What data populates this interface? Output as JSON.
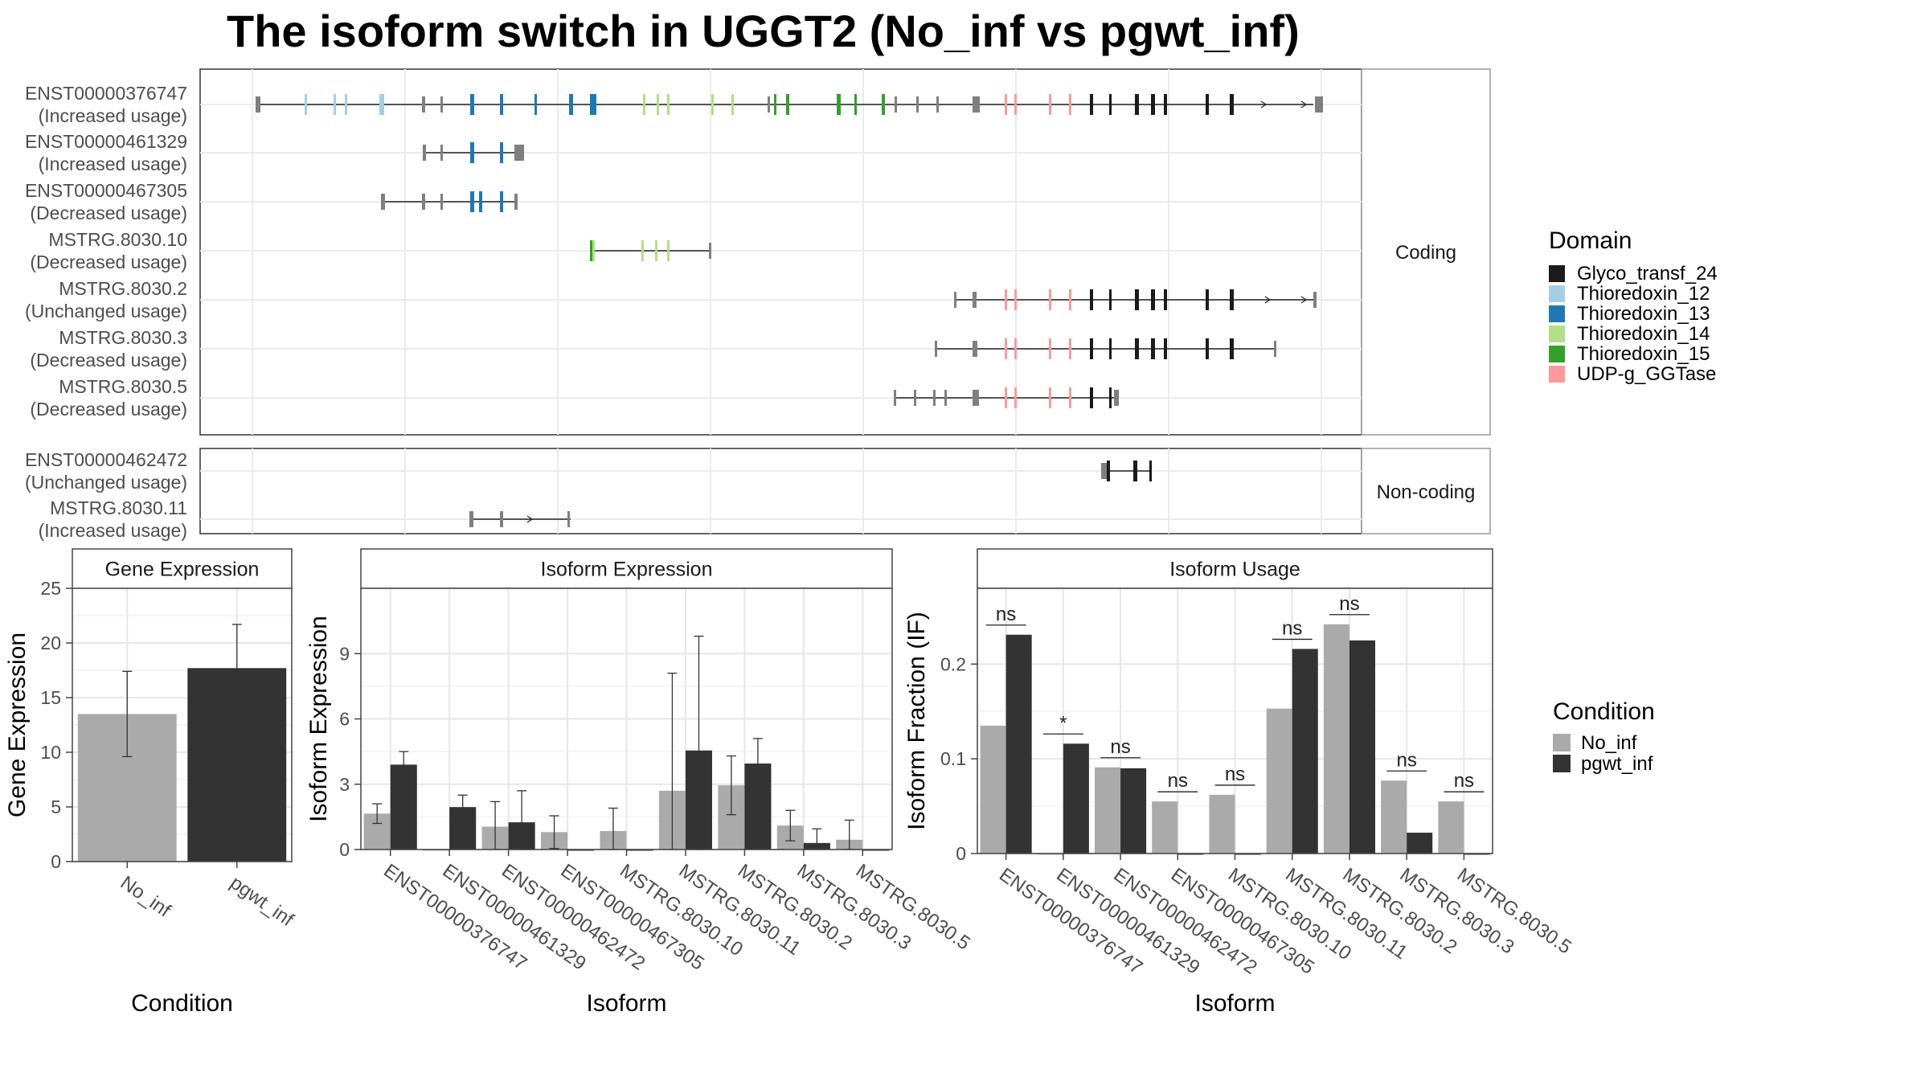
{
  "title": "The isoform switch in UGGT2 (No_inf vs pgwt_inf)",
  "colors": {
    "Glyco_transf_24": "#1a1a1a",
    "Thioredoxin_12": "#a6cee3",
    "Thioredoxin_13": "#1f78b4",
    "Thioredoxin_14": "#b2df8a",
    "Thioredoxin_15": "#33a02c",
    "UDP-g_GGTase": "#fb9a99",
    "exon": "#7f7f7f",
    "No_inf": "#aaaaaa",
    "pgwt_inf": "#333333"
  },
  "structure": {
    "panels": [
      {
        "label": "Coding",
        "rows": [
          {
            "id": "ENST00000376747",
            "usage": "(Increased usage)"
          },
          {
            "id": "ENST00000461329",
            "usage": "(Increased usage)"
          },
          {
            "id": "ENST00000467305",
            "usage": "(Decreased usage)"
          },
          {
            "id": "MSTRG.8030.10",
            "usage": "(Decreased usage)"
          },
          {
            "id": "MSTRG.8030.2",
            "usage": "(Unchanged usage)"
          },
          {
            "id": "MSTRG.8030.3",
            "usage": "(Decreased usage)"
          },
          {
            "id": "MSTRG.8030.5",
            "usage": "(Decreased usage)"
          }
        ]
      },
      {
        "label": "Non-coding",
        "rows": [
          {
            "id": "ENST00000462472",
            "usage": "(Unchanged usage)"
          },
          {
            "id": "MSTRG.8030.11",
            "usage": "(Increased usage)"
          }
        ]
      }
    ]
  },
  "legends": {
    "domain": {
      "title": "Domain",
      "items": [
        {
          "label": "Glyco_transf_24",
          "key": "Glyco_transf_24"
        },
        {
          "label": "Thioredoxin_12",
          "key": "Thioredoxin_12"
        },
        {
          "label": "Thioredoxin_13",
          "key": "Thioredoxin_13"
        },
        {
          "label": "Thioredoxin_14",
          "key": "Thioredoxin_14"
        },
        {
          "label": "Thioredoxin_15",
          "key": "Thioredoxin_15"
        },
        {
          "label": "UDP-g_GGTase",
          "key": "UDP-g_GGTase"
        }
      ]
    },
    "condition": {
      "title": "Condition",
      "items": [
        {
          "label": "No_inf",
          "key": "No_inf"
        },
        {
          "label": "pgwt_inf",
          "key": "pgwt_inf"
        }
      ]
    }
  },
  "chart_data": [
    {
      "type": "bar",
      "title": "Gene Expression",
      "xlabel": "Condition",
      "ylabel": "Gene Expression",
      "ylim": [
        0,
        25
      ],
      "yticks": [
        0,
        5,
        10,
        15,
        20,
        25
      ],
      "categories": [
        "No_inf",
        "pgwt_inf"
      ],
      "values": [
        13.5,
        17.7
      ],
      "error": [
        [
          9.6,
          17.4
        ],
        [
          13.7,
          21.7
        ]
      ]
    },
    {
      "type": "bar",
      "title": "Isoform Expression",
      "xlabel": "Isoform",
      "ylabel": "Isoform Expression",
      "ylim": [
        0,
        12
      ],
      "yticks": [
        0,
        3,
        6,
        9
      ],
      "categories": [
        "ENST00000376747",
        "ENST00000461329",
        "ENST00000462472",
        "ENST00000467305",
        "MSTRG.8030.10",
        "MSTRG.8030.11",
        "MSTRG.8030.2",
        "MSTRG.8030.3",
        "MSTRG.8030.5"
      ],
      "series": [
        {
          "name": "No_inf",
          "values": [
            1.65,
            0.0,
            1.05,
            0.8,
            0.85,
            2.7,
            2.95,
            1.1,
            0.45
          ],
          "error": [
            [
              1.2,
              2.1
            ],
            null,
            [
              0.0,
              2.2
            ],
            [
              0.05,
              1.55
            ],
            [
              0.0,
              1.9
            ],
            [
              0.0,
              8.1
            ],
            [
              1.6,
              4.3
            ],
            [
              0.4,
              1.8
            ],
            [
              0.0,
              1.35
            ]
          ]
        },
        {
          "name": "pgwt_inf",
          "values": [
            3.9,
            1.95,
            1.25,
            0.0,
            0.0,
            4.55,
            3.95,
            0.3,
            0.0
          ],
          "error": [
            [
              3.3,
              4.5
            ],
            [
              1.4,
              2.5
            ],
            [
              0.0,
              2.7
            ],
            null,
            null,
            [
              0.0,
              9.8
            ],
            [
              2.8,
              5.1
            ],
            [
              0.0,
              0.95
            ],
            null
          ]
        }
      ]
    },
    {
      "type": "bar",
      "title": "Isoform Usage",
      "xlabel": "Isoform",
      "ylabel": "Isoform Fraction (IF)",
      "ylim": [
        0,
        0.28
      ],
      "yticks": [
        0.0,
        0.1,
        0.2
      ],
      "categories": [
        "ENST00000376747",
        "ENST00000461329",
        "ENST00000462472",
        "ENST00000467305",
        "MSTRG.8030.10",
        "MSTRG.8030.11",
        "MSTRG.8030.2",
        "MSTRG.8030.3",
        "MSTRG.8030.5"
      ],
      "series": [
        {
          "name": "No_inf",
          "values": [
            0.135,
            0.0,
            0.091,
            0.055,
            0.062,
            0.153,
            0.242,
            0.077,
            0.055
          ]
        },
        {
          "name": "pgwt_inf",
          "values": [
            0.231,
            0.116,
            0.09,
            0.0,
            0.0,
            0.216,
            0.225,
            0.022,
            0.0
          ]
        }
      ],
      "significance": [
        "ns",
        "*",
        "ns",
        "ns",
        "ns",
        "ns",
        "ns",
        "ns",
        "ns"
      ]
    }
  ]
}
